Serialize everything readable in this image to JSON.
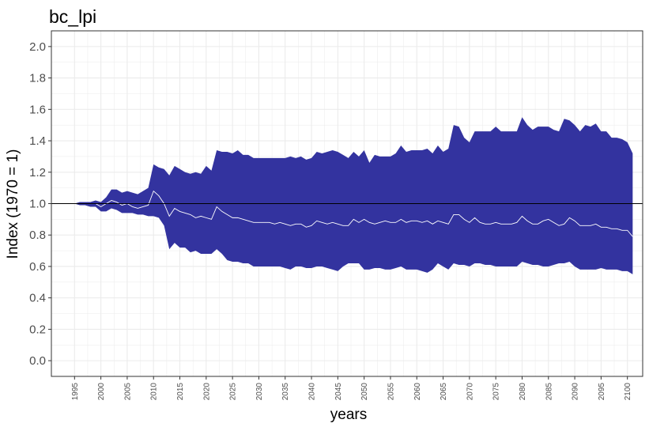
{
  "chart_data": {
    "type": "area",
    "title": "bc_lpi",
    "xlabel": "years",
    "ylabel": "Index (1970 = 1)",
    "ylim": [
      -0.1,
      2.1
    ],
    "xlim": [
      1990.6,
      2102.9
    ],
    "yticks": [
      "0.0",
      "0.2",
      "0.4",
      "0.6",
      "0.8",
      "1.0",
      "1.2",
      "1.4",
      "1.6",
      "1.8",
      "2.0"
    ],
    "xticks": [
      "1995",
      "2000",
      "2005",
      "2010",
      "2015",
      "2020",
      "2025",
      "2030",
      "2035",
      "2040",
      "2045",
      "2050",
      "2055",
      "2060",
      "2065",
      "2070",
      "2075",
      "2080",
      "2085",
      "2090",
      "2095",
      "2100"
    ],
    "grid": true,
    "reference_line": 1.0,
    "colors": {
      "band": "#33339f",
      "index_line": "#ffffff",
      "reference_line": "#000000",
      "grid": "#ebebeb",
      "panel_border": "#333333"
    },
    "x": [
      1995,
      1996,
      1997,
      1998,
      1999,
      2000,
      2001,
      2002,
      2003,
      2004,
      2005,
      2006,
      2007,
      2008,
      2009,
      2010,
      2011,
      2012,
      2013,
      2014,
      2015,
      2016,
      2017,
      2018,
      2019,
      2020,
      2021,
      2022,
      2023,
      2024,
      2025,
      2026,
      2027,
      2028,
      2029,
      2030,
      2031,
      2032,
      2033,
      2034,
      2035,
      2036,
      2037,
      2038,
      2039,
      2040,
      2041,
      2042,
      2043,
      2044,
      2045,
      2046,
      2047,
      2048,
      2049,
      2050,
      2051,
      2052,
      2053,
      2054,
      2055,
      2056,
      2057,
      2058,
      2059,
      2060,
      2061,
      2062,
      2063,
      2064,
      2065,
      2066,
      2067,
      2068,
      2069,
      2070,
      2071,
      2072,
      2073,
      2074,
      2075,
      2076,
      2077,
      2078,
      2079,
      2080,
      2081,
      2082,
      2083,
      2084,
      2085,
      2086,
      2087,
      2088,
      2089,
      2090,
      2091,
      2092,
      2093,
      2094,
      2095,
      2096,
      2097,
      2098,
      2099,
      2100,
      2101
    ],
    "series": [
      {
        "name": "upper",
        "values": [
          1.0,
          1.01,
          1.01,
          1.01,
          1.02,
          1.01,
          1.04,
          1.09,
          1.09,
          1.07,
          1.08,
          1.07,
          1.06,
          1.08,
          1.1,
          1.25,
          1.23,
          1.22,
          1.18,
          1.24,
          1.22,
          1.2,
          1.19,
          1.2,
          1.19,
          1.24,
          1.21,
          1.34,
          1.33,
          1.33,
          1.32,
          1.34,
          1.31,
          1.31,
          1.29,
          1.29,
          1.29,
          1.29,
          1.29,
          1.29,
          1.29,
          1.3,
          1.29,
          1.3,
          1.28,
          1.29,
          1.33,
          1.32,
          1.33,
          1.34,
          1.33,
          1.31,
          1.29,
          1.33,
          1.3,
          1.34,
          1.26,
          1.31,
          1.3,
          1.3,
          1.3,
          1.32,
          1.37,
          1.33,
          1.34,
          1.34,
          1.34,
          1.35,
          1.32,
          1.37,
          1.33,
          1.35,
          1.5,
          1.49,
          1.42,
          1.39,
          1.46,
          1.46,
          1.46,
          1.46,
          1.49,
          1.46,
          1.46,
          1.46,
          1.46,
          1.55,
          1.5,
          1.47,
          1.49,
          1.49,
          1.49,
          1.47,
          1.46,
          1.54,
          1.53,
          1.5,
          1.46,
          1.5,
          1.49,
          1.51,
          1.46,
          1.46,
          1.42,
          1.42,
          1.41,
          1.39,
          1.32
        ]
      },
      {
        "name": "index",
        "values": [
          1.0,
          1.0,
          1.0,
          1.0,
          1.0,
          0.98,
          1.0,
          1.02,
          1.01,
          0.99,
          1.0,
          0.98,
          0.97,
          0.98,
          0.99,
          1.08,
          1.05,
          1.0,
          0.92,
          0.97,
          0.95,
          0.94,
          0.93,
          0.91,
          0.92,
          0.91,
          0.9,
          0.98,
          0.95,
          0.93,
          0.91,
          0.91,
          0.9,
          0.89,
          0.88,
          0.88,
          0.88,
          0.88,
          0.87,
          0.88,
          0.87,
          0.86,
          0.87,
          0.87,
          0.85,
          0.86,
          0.89,
          0.88,
          0.87,
          0.88,
          0.87,
          0.86,
          0.86,
          0.9,
          0.88,
          0.9,
          0.88,
          0.87,
          0.88,
          0.89,
          0.88,
          0.88,
          0.9,
          0.88,
          0.89,
          0.89,
          0.88,
          0.89,
          0.87,
          0.89,
          0.88,
          0.87,
          0.93,
          0.93,
          0.9,
          0.88,
          0.91,
          0.88,
          0.87,
          0.87,
          0.88,
          0.87,
          0.87,
          0.87,
          0.88,
          0.92,
          0.89,
          0.87,
          0.87,
          0.89,
          0.9,
          0.88,
          0.86,
          0.87,
          0.91,
          0.89,
          0.86,
          0.86,
          0.86,
          0.87,
          0.85,
          0.85,
          0.84,
          0.84,
          0.83,
          0.83,
          0.79
        ]
      },
      {
        "name": "lower",
        "values": [
          1.0,
          0.99,
          0.99,
          0.98,
          0.98,
          0.95,
          0.95,
          0.97,
          0.96,
          0.94,
          0.94,
          0.94,
          0.93,
          0.93,
          0.92,
          0.92,
          0.91,
          0.86,
          0.71,
          0.75,
          0.72,
          0.72,
          0.69,
          0.7,
          0.68,
          0.68,
          0.68,
          0.71,
          0.68,
          0.64,
          0.63,
          0.63,
          0.62,
          0.62,
          0.6,
          0.6,
          0.6,
          0.6,
          0.6,
          0.6,
          0.59,
          0.58,
          0.6,
          0.6,
          0.59,
          0.59,
          0.6,
          0.6,
          0.59,
          0.58,
          0.57,
          0.6,
          0.62,
          0.62,
          0.62,
          0.58,
          0.58,
          0.59,
          0.59,
          0.58,
          0.58,
          0.59,
          0.6,
          0.58,
          0.58,
          0.58,
          0.57,
          0.56,
          0.58,
          0.62,
          0.6,
          0.58,
          0.62,
          0.61,
          0.61,
          0.6,
          0.62,
          0.62,
          0.61,
          0.61,
          0.6,
          0.6,
          0.6,
          0.6,
          0.6,
          0.63,
          0.62,
          0.61,
          0.61,
          0.6,
          0.6,
          0.61,
          0.62,
          0.62,
          0.63,
          0.6,
          0.58,
          0.58,
          0.58,
          0.58,
          0.59,
          0.58,
          0.58,
          0.58,
          0.57,
          0.57,
          0.55
        ]
      }
    ]
  }
}
